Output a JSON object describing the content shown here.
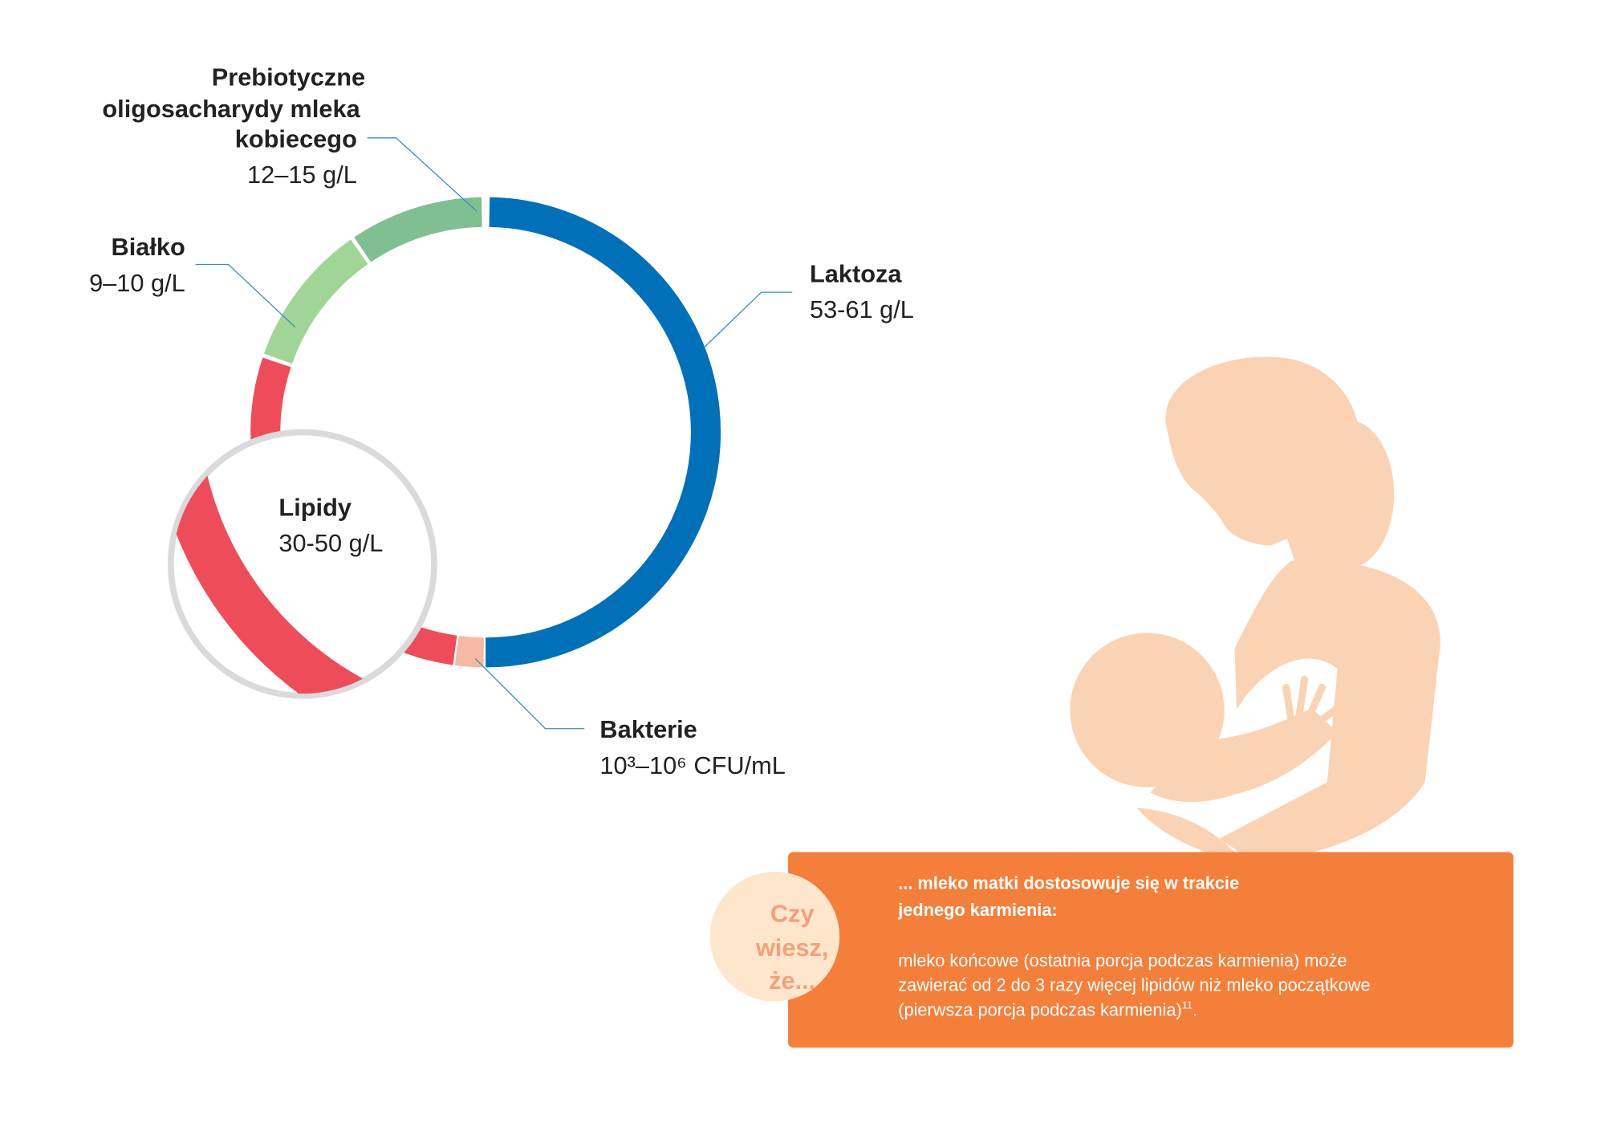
{
  "segments": {
    "prebiotic": {
      "label_lines": [
        "Prebiotyczne",
        "oligosacharydy mleka",
        "kobiecego"
      ],
      "value": "12–15 g/L"
    },
    "protein": {
      "label": "Białko",
      "value": "9–10 g/L"
    },
    "lactose": {
      "label": "Laktoza",
      "value": "53-61 g/L"
    },
    "lipids": {
      "label": "Lipidy",
      "value": "30-50 g/L"
    },
    "bacteria": {
      "label": "Bakterie",
      "value": "10³–10⁶ CFU/mL"
    }
  },
  "callout": {
    "badge_lines": [
      "Czy",
      "wiesz,",
      "że..."
    ],
    "heading_lines": [
      "... mleko matki dostosowuje się w trakcie",
      "jednego karmienia:"
    ],
    "body_lines": [
      "mleko końcowe (ostatnia porcja podczas karmienia) może",
      "zawierać od 2 do 3 razy więcej lipidów niż mleko początkowe",
      "(pierwsza porcja podczas karmienia)"
    ],
    "ref": "11",
    "end": "."
  }
}
